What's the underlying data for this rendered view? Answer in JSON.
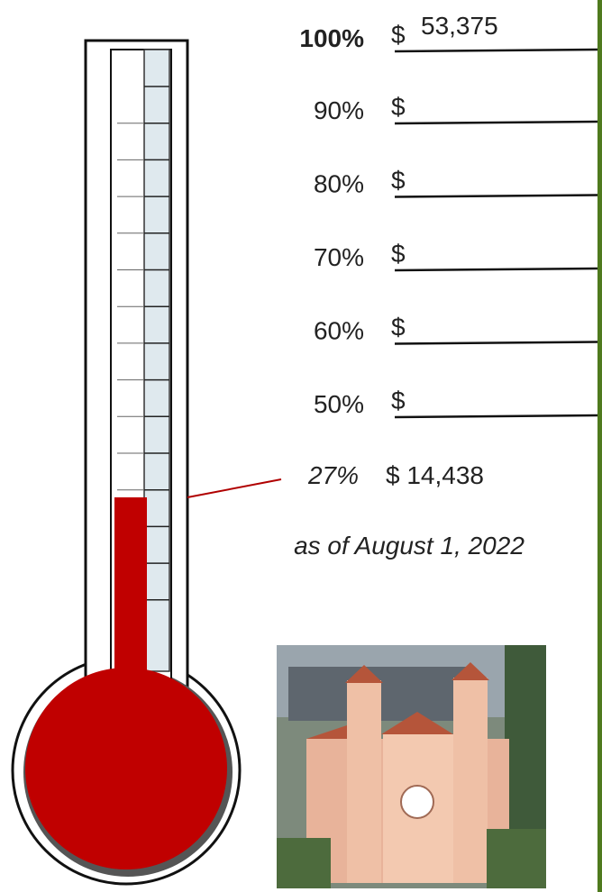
{
  "goal": {
    "percent": "100%",
    "currency": "$",
    "amount": "53,375"
  },
  "levels": [
    {
      "percent": "90%",
      "currency": "$"
    },
    {
      "percent": "80%",
      "currency": "$"
    },
    {
      "percent": "70%",
      "currency": "$"
    },
    {
      "percent": "60%",
      "currency": "$"
    },
    {
      "percent": "50%",
      "currency": "$"
    }
  ],
  "current": {
    "percent": "27%",
    "amount": "$ 14,438"
  },
  "date_note": "as of August 1, 2022"
}
